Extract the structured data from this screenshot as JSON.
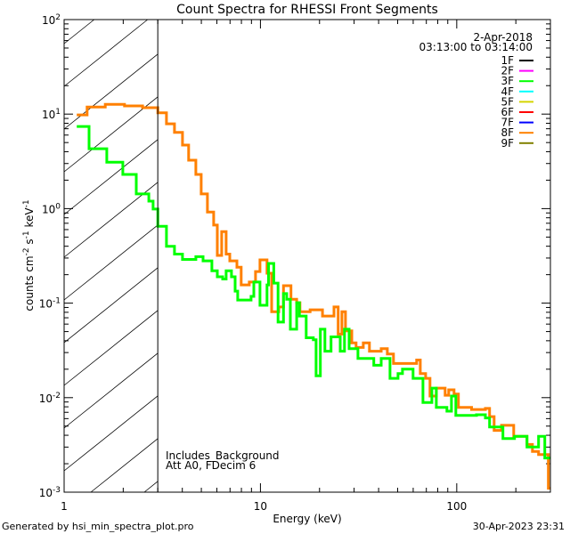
{
  "chart_data": {
    "type": "line",
    "title": "Count Spectra for RHESSI Front Segments",
    "xlabel": "Energy (keV)",
    "ylabel": "counts cm-2 s-1 keV-1",
    "ylabel_parts": {
      "a": "counts cm",
      "b": "-2",
      "c": " s",
      "d": "-1",
      "e": " keV",
      "f": "-1"
    },
    "xscale": "log",
    "yscale": "log",
    "xlim": [
      1,
      300
    ],
    "ylim": [
      0.001,
      100
    ],
    "x_ticks": [
      {
        "v": 1,
        "label": "1"
      },
      {
        "v": 10,
        "label": "10"
      },
      {
        "v": 100,
        "label": "100"
      }
    ],
    "y_ticks": [
      {
        "v": 0.001,
        "exp": "-3"
      },
      {
        "v": 0.01,
        "exp": "-2"
      },
      {
        "v": 0.1,
        "exp": "-1"
      },
      {
        "v": 1,
        "exp": "0"
      },
      {
        "v": 10,
        "exp": "1"
      },
      {
        "v": 100,
        "exp": "2"
      }
    ],
    "y_tick_base": "10",
    "hatched_region_keV": [
      1,
      3
    ],
    "date": "2-Apr-2018",
    "time_range": "03:13:00 to 03:14:00",
    "legend_position": "top-right",
    "legend": [
      {
        "name": "1F",
        "color": "#000000"
      },
      {
        "name": "2F",
        "color": "#ff00ff"
      },
      {
        "name": "3F",
        "color": "#00ff00"
      },
      {
        "name": "4F",
        "color": "#00ffff"
      },
      {
        "name": "5F",
        "color": "#d4d400"
      },
      {
        "name": "6F",
        "color": "#ff0000"
      },
      {
        "name": "7F",
        "color": "#0000ff"
      },
      {
        "name": "8F",
        "color": "#ff8000"
      },
      {
        "name": "9F",
        "color": "#808000"
      }
    ],
    "annotations": [
      "Includes_Background",
      "Att A0, FDecim 6"
    ],
    "series": [
      {
        "name": "8F",
        "color": "#ff8000",
        "x_end": 300,
        "points": [
          [
            1.16,
            9.8
          ],
          [
            1.31,
            11.9
          ],
          [
            1.62,
            12.7
          ],
          [
            2.03,
            12.2
          ],
          [
            2.51,
            11.7
          ],
          [
            3.0,
            10.3
          ],
          [
            3.32,
            7.9
          ],
          [
            3.65,
            6.4
          ],
          [
            4.01,
            4.7
          ],
          [
            4.31,
            3.25
          ],
          [
            4.69,
            2.3
          ],
          [
            4.99,
            1.43
          ],
          [
            5.37,
            0.92
          ],
          [
            5.78,
            0.67
          ],
          [
            6.03,
            0.32
          ],
          [
            6.35,
            0.57
          ],
          [
            6.69,
            0.33
          ],
          [
            6.98,
            0.28
          ],
          [
            7.59,
            0.24
          ],
          [
            7.98,
            0.156
          ],
          [
            8.77,
            0.167
          ],
          [
            9.44,
            0.216
          ],
          [
            9.95,
            0.287
          ],
          [
            10.8,
            0.207
          ],
          [
            11.4,
            0.081
          ],
          [
            12.4,
            0.091
          ],
          [
            13.1,
            0.153
          ],
          [
            14.3,
            0.11
          ],
          [
            15.3,
            0.101
          ],
          [
            15.9,
            0.081
          ],
          [
            17.9,
            0.085
          ],
          [
            20.7,
            0.073
          ],
          [
            23.7,
            0.091
          ],
          [
            24.9,
            0.047
          ],
          [
            26.0,
            0.081
          ],
          [
            27.1,
            0.051
          ],
          [
            29.2,
            0.038
          ],
          [
            30.7,
            0.034
          ],
          [
            33.4,
            0.038
          ],
          [
            35.9,
            0.031
          ],
          [
            41.2,
            0.033
          ],
          [
            44.3,
            0.029
          ],
          [
            47.6,
            0.023
          ],
          [
            62.5,
            0.025
          ],
          [
            65.2,
            0.018
          ],
          [
            69.4,
            0.016
          ],
          [
            73.1,
            0.0104
          ],
          [
            78.7,
            0.0126
          ],
          [
            87.3,
            0.0106
          ],
          [
            91.0,
            0.0121
          ],
          [
            96.9,
            0.0109
          ],
          [
            102,
            0.0079
          ],
          [
            119,
            0.0075
          ],
          [
            140,
            0.0077
          ],
          [
            147,
            0.0063
          ],
          [
            155,
            0.0045
          ],
          [
            169,
            0.0051
          ],
          [
            195,
            0.0039
          ],
          [
            228,
            0.0032
          ],
          [
            243,
            0.0027
          ],
          [
            261,
            0.0025
          ],
          [
            293,
            0.0011
          ]
        ]
      },
      {
        "name": "3F",
        "color": "#00ff00",
        "x_end": 300,
        "points": [
          [
            1.16,
            7.4
          ],
          [
            1.34,
            4.3
          ],
          [
            1.65,
            3.1
          ],
          [
            1.99,
            2.3
          ],
          [
            2.33,
            1.43
          ],
          [
            2.7,
            1.2
          ],
          [
            2.84,
            0.99
          ],
          [
            3.0,
            0.65
          ],
          [
            3.32,
            0.4
          ],
          [
            3.65,
            0.33
          ],
          [
            4.01,
            0.29
          ],
          [
            4.69,
            0.31
          ],
          [
            5.1,
            0.28
          ],
          [
            5.66,
            0.22
          ],
          [
            6.03,
            0.19
          ],
          [
            6.42,
            0.18
          ],
          [
            6.69,
            0.22
          ],
          [
            7.12,
            0.19
          ],
          [
            7.43,
            0.134
          ],
          [
            7.66,
            0.108
          ],
          [
            8.96,
            0.118
          ],
          [
            9.25,
            0.167
          ],
          [
            9.95,
            0.095
          ],
          [
            10.8,
            0.156
          ],
          [
            11.0,
            0.263
          ],
          [
            11.7,
            0.163
          ],
          [
            12.3,
            0.063
          ],
          [
            13.1,
            0.126
          ],
          [
            13.6,
            0.11
          ],
          [
            14.2,
            0.053
          ],
          [
            15.3,
            0.101
          ],
          [
            15.8,
            0.073
          ],
          [
            17.1,
            0.043
          ],
          [
            18.6,
            0.041
          ],
          [
            19.2,
            0.017
          ],
          [
            20.2,
            0.053
          ],
          [
            21.3,
            0.031
          ],
          [
            22.9,
            0.044
          ],
          [
            25.5,
            0.031
          ],
          [
            26.8,
            0.053
          ],
          [
            28.3,
            0.033
          ],
          [
            31.4,
            0.026
          ],
          [
            37.8,
            0.022
          ],
          [
            41.2,
            0.026
          ],
          [
            45.7,
            0.016
          ],
          [
            50.2,
            0.018
          ],
          [
            52.9,
            0.02
          ],
          [
            59.9,
            0.016
          ],
          [
            67.3,
            0.0089
          ],
          [
            74.7,
            0.0126
          ],
          [
            78.7,
            0.0079
          ],
          [
            89.1,
            0.0072
          ],
          [
            94.0,
            0.0104
          ],
          [
            98.9,
            0.0065
          ],
          [
            126,
            0.0066
          ],
          [
            140,
            0.0061
          ],
          [
            147,
            0.0049
          ],
          [
            172,
            0.0037
          ],
          [
            197,
            0.0039
          ],
          [
            228,
            0.003
          ],
          [
            261,
            0.0039
          ],
          [
            281,
            0.0023
          ]
        ]
      }
    ]
  },
  "footer": {
    "generated_by": "Generated by hsi_min_spectra_plot.pro",
    "timestamp": "30-Apr-2023 23:31"
  }
}
